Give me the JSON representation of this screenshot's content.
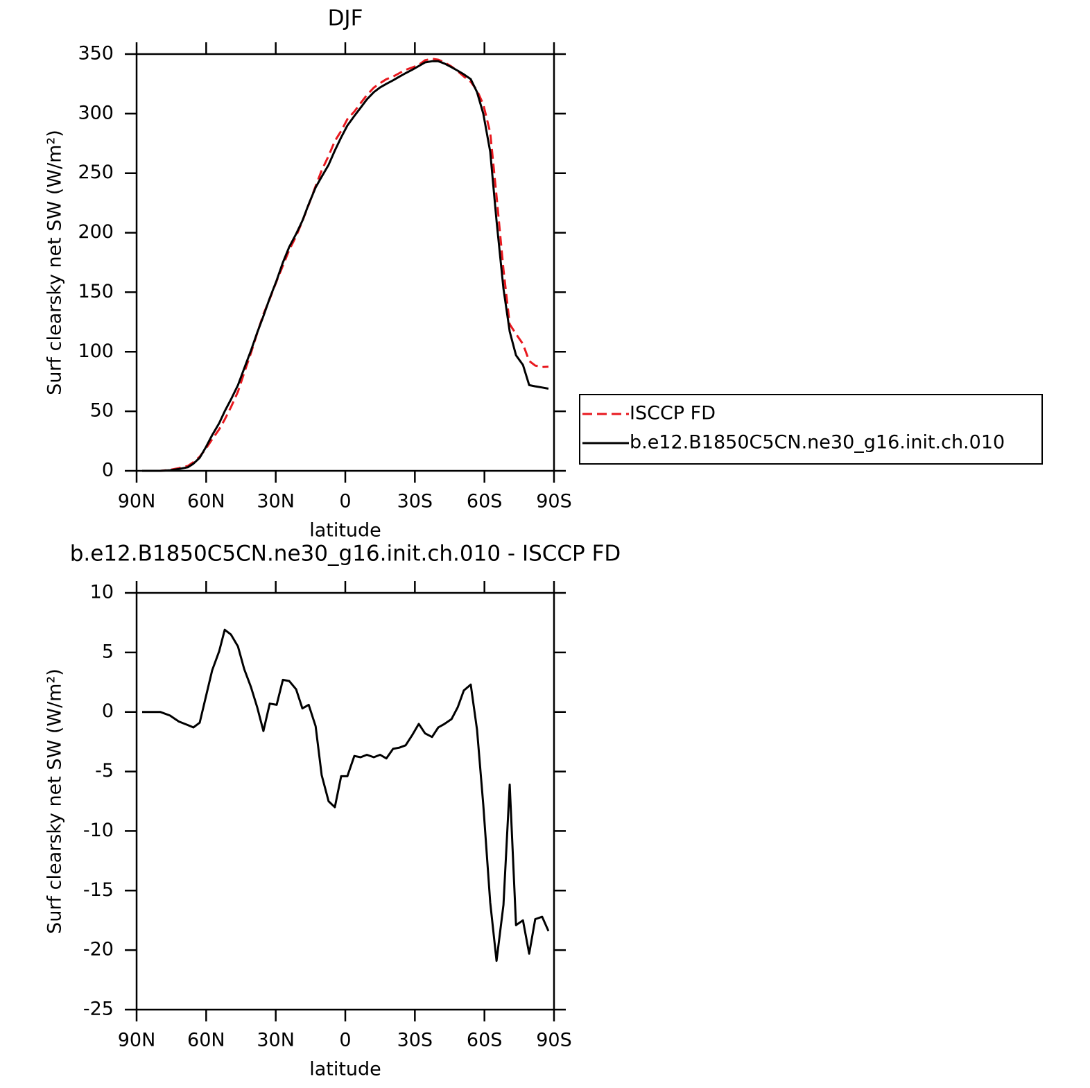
{
  "chart_data": [
    {
      "type": "line",
      "title": "DJF",
      "xlabel": "latitude",
      "ylabel": "Surf clearsky net SW (W/m²)",
      "x": [
        87.6,
        79.8,
        75.6,
        71.8,
        67.9,
        65.5,
        62.8,
        60.1,
        57.4,
        54.4,
        52.0,
        49.3,
        46.3,
        43.6,
        40.7,
        38.0,
        35.3,
        32.6,
        29.6,
        26.9,
        24.2,
        21.2,
        18.5,
        15.8,
        12.8,
        10.2,
        7.2,
        4.5,
        1.8,
        -0.9,
        -3.9,
        -6.6,
        -9.3,
        -12.3,
        -15.0,
        -17.7,
        -20.6,
        -23.3,
        -26.0,
        -29.0,
        -31.7,
        -34.4,
        -37.4,
        -40.1,
        -42.8,
        -45.8,
        -48.5,
        -51.1,
        -54.1,
        -56.8,
        -59.5,
        -62.5,
        -65.2,
        -68.2,
        -70.9,
        -73.6,
        -76.6,
        -79.3,
        -81.9,
        -84.9,
        -87.6
      ],
      "series": [
        {
          "name": "ISCCP FD",
          "color": "#e8181e",
          "dashed": true,
          "values": [
            0,
            0,
            0.8,
            2.3,
            4.1,
            7.3,
            11.9,
            18.7,
            26.5,
            34.9,
            43.1,
            53.5,
            66.5,
            82.4,
            98.9,
            115.6,
            131.6,
            144.3,
            159.4,
            172.3,
            185.4,
            197.1,
            209.7,
            223.4,
            239.2,
            252.3,
            264.5,
            277,
            285.4,
            295.4,
            301.7,
            308.8,
            315.6,
            321.8,
            325.6,
            328.9,
            331.1,
            334,
            336.8,
            338.9,
            341,
            344.8,
            346.1,
            345.3,
            343,
            339.6,
            335.6,
            331.2,
            326.7,
            319.5,
            307.8,
            284,
            230.9,
            169.2,
            123.1,
            114.9,
            106.5,
            92.3,
            88.4,
            87.2,
            87.4
          ]
        },
        {
          "name": "b.e12.B1850C5CN.ne30_g16.init.ch.010",
          "color": "#000000",
          "dashed": false,
          "values": [
            0,
            0,
            0.5,
            1.5,
            3,
            6,
            11,
            20,
            30,
            40,
            50,
            60,
            72,
            86,
            101,
            116,
            130,
            145,
            160,
            175,
            188,
            199,
            210,
            224,
            238,
            247,
            257,
            269,
            280,
            290,
            298,
            305,
            312,
            318,
            322,
            325,
            328,
            331,
            334,
            337,
            340,
            343,
            344,
            344,
            342,
            339,
            336,
            333,
            329,
            318,
            300,
            268,
            210,
            153,
            117,
            97,
            89,
            72,
            71,
            70,
            69
          ]
        }
      ],
      "xlim": [
        90,
        -90
      ],
      "xticks": [
        {
          "value": 90,
          "label": "90N"
        },
        {
          "value": 60,
          "label": "60N"
        },
        {
          "value": 30,
          "label": "30N"
        },
        0,
        {
          "value": -30,
          "label": "30S"
        },
        {
          "value": -60,
          "label": "60S"
        },
        {
          "value": -90,
          "label": "90S"
        }
      ],
      "ylim": [
        0,
        350
      ],
      "yticks": [
        0,
        50,
        100,
        150,
        200,
        250,
        300,
        350
      ],
      "legend": "right"
    },
    {
      "type": "line",
      "title": "b.e12.B1850C5CN.ne30_g16.init.ch.010 - ISCCP FD",
      "xlabel": "latitude",
      "ylabel": "Surf clearsky net SW (W/m²)",
      "x": [
        87.6,
        79.8,
        75.6,
        71.8,
        67.9,
        65.5,
        62.8,
        60.1,
        57.4,
        54.4,
        52.0,
        49.3,
        46.3,
        43.6,
        40.7,
        38.0,
        35.3,
        32.6,
        29.6,
        26.9,
        24.2,
        21.2,
        18.5,
        15.8,
        12.8,
        10.2,
        7.2,
        4.5,
        1.8,
        -0.9,
        -3.9,
        -6.6,
        -9.3,
        -12.3,
        -15.0,
        -17.7,
        -20.6,
        -23.3,
        -26.0,
        -29.0,
        -31.7,
        -34.4,
        -37.4,
        -40.1,
        -42.8,
        -45.8,
        -48.5,
        -51.1,
        -54.1,
        -56.8,
        -59.5,
        -62.5,
        -65.2,
        -68.2,
        -70.9,
        -73.6,
        -76.6,
        -79.3,
        -81.9,
        -84.9,
        -87.6
      ],
      "color": "#000000",
      "values": [
        0,
        0,
        -0.3,
        -0.8,
        -1.1,
        -1.3,
        -0.9,
        1.3,
        3.5,
        5.1,
        6.9,
        6.5,
        5.5,
        3.6,
        2.1,
        0.4,
        -1.6,
        0.7,
        0.6,
        2.7,
        2.6,
        1.9,
        0.3,
        0.6,
        -1.2,
        -5.3,
        -7.5,
        -8.0,
        -5.4,
        -5.4,
        -3.7,
        -3.8,
        -3.6,
        -3.8,
        -3.6,
        -3.9,
        -3.1,
        -3.0,
        -2.8,
        -1.9,
        -1.0,
        -1.8,
        -2.1,
        -1.3,
        -1.0,
        -0.6,
        0.4,
        1.8,
        2.3,
        -1.5,
        -7.8,
        -16.0,
        -20.9,
        -16.2,
        -6.1,
        -17.9,
        -17.5,
        -20.3,
        -17.4,
        -17.2,
        -18.4
      ],
      "xlim": [
        90,
        -90
      ],
      "xticks": [
        {
          "value": 90,
          "label": "90N"
        },
        {
          "value": 60,
          "label": "60N"
        },
        {
          "value": 30,
          "label": "30N"
        },
        0,
        {
          "value": -30,
          "label": "30S"
        },
        {
          "value": -60,
          "label": "60S"
        },
        {
          "value": -90,
          "label": "90S"
        }
      ],
      "ylim": [
        -25,
        10
      ],
      "yticks": [
        -25,
        -20,
        -15,
        -10,
        -5,
        0,
        5,
        10
      ]
    }
  ]
}
